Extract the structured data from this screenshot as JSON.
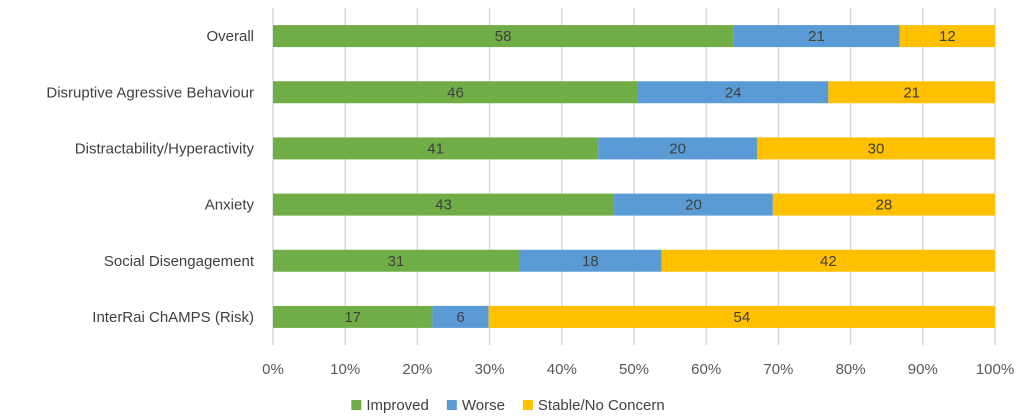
{
  "chart_data": {
    "type": "bar",
    "orientation": "horizontal",
    "stacked": "percent",
    "categories": [
      "Overall",
      "Disruptive Agressive Behaviour",
      "Distractability/Hyperactivity",
      "Anxiety",
      "Social Disengagement",
      "InterRai ChAMPS (Risk)"
    ],
    "series": [
      {
        "name": "Improved",
        "color": "#70AD47",
        "values": [
          58,
          46,
          41,
          43,
          31,
          17
        ]
      },
      {
        "name": "Worse",
        "color": "#5B9BD5",
        "values": [
          21,
          24,
          20,
          20,
          18,
          6
        ]
      },
      {
        "name": "Stable/No Concern",
        "color": "#FFC000",
        "values": [
          12,
          21,
          30,
          28,
          42,
          54
        ]
      }
    ],
    "x_ticks": [
      "0%",
      "10%",
      "20%",
      "30%",
      "40%",
      "50%",
      "60%",
      "70%",
      "80%",
      "90%",
      "100%"
    ],
    "xlim": [
      0,
      100
    ],
    "title": "",
    "xlabel": "",
    "ylabel": "",
    "grid": "vertical",
    "legend_position": "bottom",
    "gridline_color": "#D9D9D9"
  }
}
